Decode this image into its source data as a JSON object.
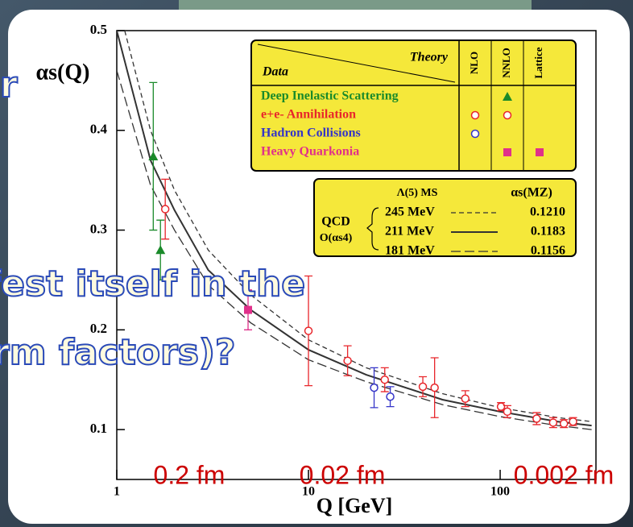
{
  "chart_data": {
    "type": "scatter",
    "x_label": "Q [GeV]",
    "y_label": "αs(Q)",
    "xlim": [
      1,
      316
    ],
    "ylim": [
      0.05,
      0.5
    ],
    "log_x": true,
    "xticks": [
      1,
      10,
      100
    ],
    "yticks": [
      0.1,
      0.2,
      0.3,
      0.4,
      0.5
    ],
    "series": [
      {
        "name": "Deep Inelastic Scattering",
        "color": "#1a8a2a",
        "marker": "triangle",
        "x": [
          1.55,
          1.69
        ],
        "values": [
          0.374,
          0.28
        ],
        "errors": [
          0.074,
          0.03
        ]
      },
      {
        "name": "e+e- Annihilation",
        "color": "#e8262b",
        "marker": "circle",
        "x": [
          1.79,
          10,
          16,
          25,
          39.5,
          45.5,
          65.8,
          101,
          109,
          155,
          189,
          215,
          240
        ],
        "values": [
          0.321,
          0.199,
          0.169,
          0.15,
          0.143,
          0.142,
          0.131,
          0.123,
          0.118,
          0.111,
          0.107,
          0.106,
          0.108
        ],
        "errors": [
          0.03,
          0.055,
          0.015,
          0.012,
          0.01,
          0.03,
          0.008,
          0.004,
          0.006,
          0.006,
          0.005,
          0.004,
          0.004
        ]
      },
      {
        "name": "Hadron Collisions",
        "color": "#3434c8",
        "marker": "circle",
        "x": [
          22,
          26.7
        ],
        "values": [
          0.142,
          0.133
        ],
        "errors": [
          0.02,
          0.01
        ]
      },
      {
        "name": "Heavy Quarkonia",
        "color": "#e0308a",
        "marker": "square",
        "x": [
          4.84
        ],
        "values": [
          0.22
        ],
        "errors": [
          0.02
        ]
      }
    ],
    "curves": [
      {
        "name": "245 MeV",
        "alpha_mz": "0.1210",
        "dash": "6,4",
        "width": 1.3,
        "color": "#333333",
        "x": [
          1.1,
          1.5,
          2,
          3,
          5,
          10,
          20,
          50,
          100,
          200,
          300
        ],
        "values": [
          0.5,
          0.4,
          0.34,
          0.28,
          0.235,
          0.19,
          0.162,
          0.136,
          0.122,
          0.112,
          0.108
        ]
      },
      {
        "name": "211 MeV",
        "alpha_mz": "0.1183",
        "dash": "none",
        "width": 2,
        "color": "#333333",
        "x": [
          1,
          1.5,
          2,
          3,
          5,
          10,
          20,
          50,
          100,
          200,
          300
        ],
        "values": [
          0.5,
          0.37,
          0.32,
          0.26,
          0.22,
          0.18,
          0.155,
          0.13,
          0.118,
          0.108,
          0.104
        ]
      },
      {
        "name": "181 MeV",
        "alpha_mz": "0.1156",
        "dash": "12,5",
        "width": 1.3,
        "color": "#333333",
        "x": [
          1,
          1.5,
          2,
          3,
          5,
          10,
          20,
          50,
          100,
          200,
          300
        ],
        "values": [
          0.46,
          0.345,
          0.3,
          0.245,
          0.207,
          0.17,
          0.148,
          0.125,
          0.113,
          0.104,
          0.1
        ]
      }
    ],
    "theory_table": {
      "theory_label": "Theory",
      "data_label": "Data",
      "columns": [
        "NLO",
        "NNLO",
        "Lattice"
      ]
    },
    "curves_box": {
      "title": "Λ(5) MS",
      "alpha_label": "αs(MZ)",
      "qcd_label": "QCD",
      "order_label": "O(αs4)"
    },
    "annotations": [
      "0.2 fm",
      "0.02 fm",
      "0.002 fm"
    ],
    "overlay_texts": [
      "r",
      "fest itself in the",
      "rm factors)?"
    ]
  }
}
